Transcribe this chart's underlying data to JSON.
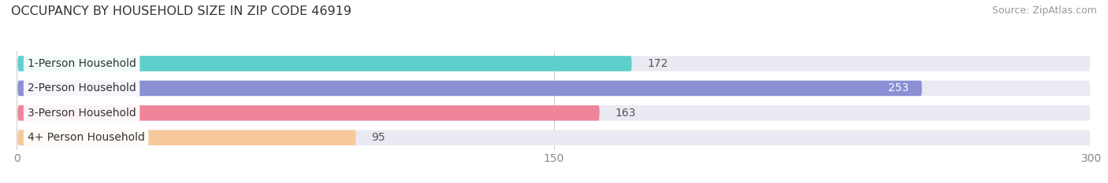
{
  "title": "OCCUPANCY BY HOUSEHOLD SIZE IN ZIP CODE 46919",
  "source": "Source: ZipAtlas.com",
  "categories": [
    "1-Person Household",
    "2-Person Household",
    "3-Person Household",
    "4+ Person Household"
  ],
  "values": [
    172,
    253,
    163,
    95
  ],
  "bar_colors": [
    "#5ECFCB",
    "#8B8FD4",
    "#F0849A",
    "#F5C99A"
  ],
  "bar_bg_color": "#EAEAF2",
  "xlim": [
    0,
    300
  ],
  "xticks": [
    0,
    150,
    300
  ],
  "value_label_threshold": 240,
  "background_color": "#FFFFFF",
  "title_fontsize": 11.5,
  "source_fontsize": 9,
  "tick_fontsize": 10,
  "bar_label_fontsize": 10,
  "category_fontsize": 10,
  "bar_height": 0.62
}
